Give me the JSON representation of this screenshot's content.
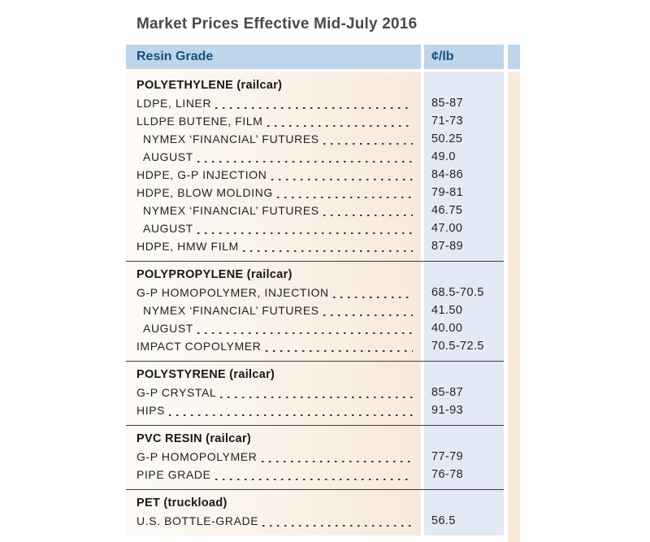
{
  "title": "Market Prices Effective Mid-July 2016",
  "header": {
    "resin_grade": "Resin Grade",
    "unit": "¢/lb"
  },
  "colors": {
    "header_bg": "#bdd6ec",
    "header_text": "#1b4f7e",
    "left_col_gradient_start": "#fdfbf8",
    "left_col_gradient_end": "#f7e9da",
    "price_col_bg": "#e3e9f5",
    "right_strip_bg": "#f9e9db",
    "divider": "#3c3c3c",
    "title_color": "#4a4a4a",
    "row_text": "#222222"
  },
  "sections": [
    {
      "heading": "POLYETHYLENE (railcar)",
      "rows": [
        {
          "label": "LDPE, LINER",
          "value": "85-87",
          "indent": false
        },
        {
          "label": "LLDPE BUTENE, FILM",
          "value": "71-73",
          "indent": false
        },
        {
          "label": "NYMEX ‘FINANCIAL’ FUTURES",
          "value": "50.25",
          "indent": true
        },
        {
          "label": "AUGUST",
          "value": "49.0",
          "indent": true
        },
        {
          "label": "HDPE, G-P INJECTION",
          "value": "84-86",
          "indent": false
        },
        {
          "label": "HDPE, BLOW MOLDING",
          "value": "79-81",
          "indent": false
        },
        {
          "label": "NYMEX ‘FINANCIAL’ FUTURES",
          "value": "46.75",
          "indent": true
        },
        {
          "label": "AUGUST",
          "value": "47.00",
          "indent": true
        },
        {
          "label": "HDPE, HMW FILM",
          "value": "87-89",
          "indent": false
        }
      ]
    },
    {
      "heading": "POLYPROPYLENE (railcar)",
      "rows": [
        {
          "label": "G-P HOMOPOLYMER, INJECTION",
          "value": "68.5-70.5",
          "indent": false
        },
        {
          "label": "NYMEX ‘FINANCIAL’ FUTURES",
          "value": "41.50",
          "indent": true
        },
        {
          "label": "AUGUST",
          "value": "40.00",
          "indent": true
        },
        {
          "label": "IMPACT COPOLYMER",
          "value": "70.5-72.5",
          "indent": false
        }
      ]
    },
    {
      "heading": "POLYSTYRENE (railcar)",
      "rows": [
        {
          "label": "G-P CRYSTAL",
          "value": "85-87",
          "indent": false
        },
        {
          "label": "HIPS",
          "value": "91-93",
          "indent": false
        }
      ]
    },
    {
      "heading": "PVC RESIN (railcar)",
      "rows": [
        {
          "label": "G-P HOMOPOLYMER",
          "value": "77-79",
          "indent": false
        },
        {
          "label": "PIPE GRADE",
          "value": "76-78",
          "indent": false
        }
      ]
    },
    {
      "heading": "PET (truckload)",
      "rows": [
        {
          "label": "U.S. BOTTLE-GRADE",
          "value": "56.5",
          "indent": false
        }
      ]
    }
  ]
}
